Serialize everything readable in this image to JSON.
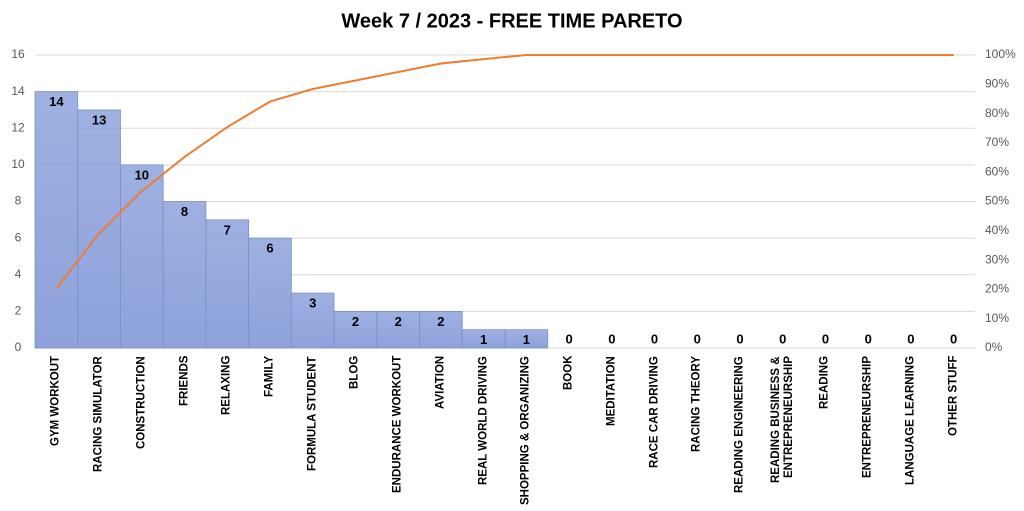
{
  "chart_data": {
    "type": "bar",
    "title": "Week 7 / 2023 - FREE TIME PARETO",
    "categories": [
      "GYM WORKOUT",
      "RACING SIMULATOR",
      "CONSTRUCTION",
      "FRIENDS",
      "RELAXING",
      "FAMILY",
      "FORMULA STUDENT",
      "BLOG",
      "ENDURANCE WORKOUT",
      "AVIATION",
      "REAL WORLD DRIVING",
      "SHOPPING & ORGANIZING",
      "BOOK",
      "MEDITATION",
      "RACE CAR DRIVING",
      "RACING THEORY",
      "READING ENGINEERING",
      "READING BUSINESS & ENTREPRENEURSHIP",
      "READING",
      "ENTREPRENEURSHIP",
      "LANGUAGE LEARNING",
      "OTHER STUFF"
    ],
    "series": [
      {
        "color": "#8ea2dc",
        "values": [
          14,
          13,
          10,
          8,
          7,
          6,
          3,
          2,
          2,
          2,
          1,
          1,
          0,
          0,
          0,
          0,
          0,
          0,
          0,
          0,
          0,
          0
        ]
      },
      {
        "type": "line",
        "axis": "y2",
        "color": "#ed7d31",
        "values": [
          20.3,
          39.1,
          53.6,
          65.2,
          75.4,
          84.1,
          88.4,
          91.3,
          94.2,
          97.1,
          98.6,
          100,
          100,
          100,
          100,
          100,
          100,
          100,
          100,
          100,
          100,
          100
        ]
      }
    ],
    "ylim": [
      0,
      16
    ],
    "yticks": [
      0,
      2,
      4,
      6,
      8,
      10,
      12,
      14,
      16
    ],
    "y2lim": [
      0,
      100
    ],
    "y2ticks": [
      {
        "value": 0,
        "label": "0%"
      },
      {
        "value": 10,
        "label": "10%"
      },
      {
        "value": 20,
        "label": "20%"
      },
      {
        "value": 30,
        "label": "30%"
      },
      {
        "value": 40,
        "label": "40%"
      },
      {
        "value": 50,
        "label": "50%"
      },
      {
        "value": 60,
        "label": "60%"
      },
      {
        "value": 70,
        "label": "70%"
      },
      {
        "value": 80,
        "label": "80%"
      },
      {
        "value": 90,
        "label": "90%"
      },
      {
        "value": 100,
        "label": "100%"
      }
    ],
    "grid": true
  }
}
